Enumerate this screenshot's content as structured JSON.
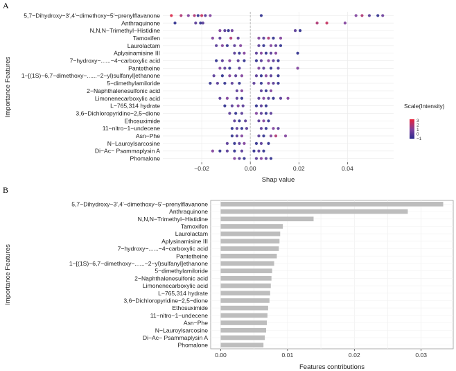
{
  "panels": {
    "a": {
      "letter": "A"
    },
    "b": {
      "letter": "B"
    }
  },
  "features": [
    "5,7−Dihydroxy−3',4'−dimethoxy−5'−prenylflavanone",
    "Anthraquinone",
    "N,N,N−Trimethyl−Histidine",
    "Tamoxifen",
    "Laurolactam",
    "Aplysinamisine III",
    "7−hydroxy−......−4−carboxylic acid",
    "Pantetheine",
    "1−[(1S)−6,7−dimethoxy−......−2−yl)sulfanyl]ethanone",
    "5−dimethylamiloride",
    "2−Naphthalenesulfonic acid",
    "Limonenecarboxylic acid",
    "L−765,314 hydrate",
    "3,6−Dichloropyridine−2,5−dione",
    "Ethosuximide",
    "11−nitro−1−undecene",
    "Asn−Phe",
    "N−Lauroylsarcosine",
    "Di−Ac− Psammaplysin A",
    "Phomalone"
  ],
  "chart_data": [
    {
      "type": "scatter",
      "panel": "A",
      "xlabel": "Shap value",
      "ylabel": "Importance Features",
      "xlim": [
        -0.036,
        0.059
      ],
      "xticks": [
        -0.02,
        0.0,
        0.02,
        0.04
      ],
      "xtick_labels": [
        "−0.02",
        "0.00",
        "0.02",
        "0.04"
      ],
      "zero_line": "dashed",
      "grid": true,
      "legend": {
        "title": "Scale(Intensity)",
        "placement": "right",
        "ticks": [
          "3",
          "2",
          "1",
          "0",
          "−1"
        ],
        "range": [
          -1,
          3.3
        ]
      },
      "colors": {
        "low": "#2b2b8c",
        "mid": "#7a3e9d",
        "high": "#e8243c"
      },
      "points": [
        [
          [
            -0.0325,
            3
          ],
          [
            -0.0285,
            2
          ],
          [
            -0.0255,
            1
          ],
          [
            -0.023,
            2
          ],
          [
            -0.0215,
            -1
          ],
          [
            -0.02,
            2.5
          ],
          [
            -0.0185,
            0
          ],
          [
            -0.0165,
            1
          ],
          [
            0.0045,
            -1
          ],
          [
            0.0435,
            1
          ],
          [
            0.046,
            2
          ],
          [
            0.049,
            0
          ],
          [
            0.0525,
            -1
          ],
          [
            0.0545,
            0.5
          ]
        ],
        [
          [
            -0.031,
            -1
          ],
          [
            -0.0225,
            0
          ],
          [
            -0.0205,
            -1
          ],
          [
            -0.0195,
            0
          ],
          [
            0.0275,
            2
          ],
          [
            0.0315,
            2.5
          ],
          [
            0.039,
            1
          ]
        ],
        [
          [
            -0.0125,
            1
          ],
          [
            -0.0105,
            0
          ],
          [
            -0.009,
            -1
          ],
          [
            -0.0075,
            0.5
          ],
          [
            0.0185,
            0
          ],
          [
            0.0205,
            -1
          ]
        ],
        [
          [
            -0.0155,
            1
          ],
          [
            -0.0125,
            0
          ],
          [
            -0.008,
            2
          ],
          [
            -0.005,
            0
          ],
          [
            0.0035,
            1
          ],
          [
            0.0055,
            0
          ],
          [
            0.0075,
            2
          ],
          [
            0.0095,
            -1
          ],
          [
            0.0125,
            1
          ]
        ],
        [
          [
            -0.014,
            0
          ],
          [
            -0.0115,
            1
          ],
          [
            -0.0095,
            -1
          ],
          [
            -0.0065,
            0
          ],
          [
            -0.004,
            1
          ],
          [
            0.0035,
            0
          ],
          [
            0.0055,
            -1
          ],
          [
            0.0085,
            1
          ],
          [
            0.0105,
            0
          ],
          [
            0.0125,
            -1
          ]
        ],
        [
          [
            -0.0065,
            0
          ],
          [
            -0.0045,
            -1
          ],
          [
            -0.0025,
            1
          ],
          [
            0.0025,
            0
          ],
          [
            0.0045,
            1
          ],
          [
            0.0065,
            -1
          ],
          [
            0.0085,
            0
          ],
          [
            0.0105,
            1
          ],
          [
            0.0195,
            -1
          ]
        ],
        [
          [
            -0.014,
            -1
          ],
          [
            -0.0115,
            0
          ],
          [
            -0.0085,
            1
          ],
          [
            -0.005,
            0
          ],
          [
            -0.0025,
            -1
          ],
          [
            0.0025,
            -1
          ],
          [
            0.0045,
            0
          ],
          [
            0.0075,
            1
          ],
          [
            0.0095,
            0
          ],
          [
            0.0115,
            -1
          ]
        ],
        [
          [
            -0.0125,
            1
          ],
          [
            -0.0105,
            0
          ],
          [
            -0.0085,
            -1
          ],
          [
            -0.0045,
            0
          ],
          [
            0.0035,
            1
          ],
          [
            0.0055,
            0
          ],
          [
            0.0085,
            -1
          ],
          [
            0.0115,
            0
          ],
          [
            0.0195,
            1
          ]
        ],
        [
          [
            -0.015,
            0
          ],
          [
            -0.0115,
            -1
          ],
          [
            -0.0085,
            1
          ],
          [
            -0.006,
            0
          ],
          [
            -0.0035,
            1
          ],
          [
            0.0025,
            0
          ],
          [
            0.0045,
            -1
          ],
          [
            0.0065,
            1
          ],
          [
            0.0085,
            0
          ],
          [
            0.0115,
            -1
          ]
        ],
        [
          [
            -0.0165,
            -1
          ],
          [
            -0.0135,
            0
          ],
          [
            -0.0105,
            -1
          ],
          [
            -0.0075,
            0
          ],
          [
            -0.0045,
            -1
          ],
          [
            0.0015,
            0
          ],
          [
            0.0045,
            -1
          ],
          [
            0.0075,
            1
          ],
          [
            0.0095,
            0
          ],
          [
            0.0115,
            -1
          ]
        ],
        [
          [
            -0.0055,
            0
          ],
          [
            -0.0035,
            1
          ],
          [
            0.0045,
            0
          ],
          [
            0.0065,
            -1
          ],
          [
            0.0085,
            1
          ]
        ],
        [
          [
            -0.0125,
            0
          ],
          [
            -0.0095,
            1
          ],
          [
            -0.0055,
            0
          ],
          [
            -0.0035,
            -1
          ],
          [
            0.0035,
            0
          ],
          [
            0.0055,
            1
          ],
          [
            0.0075,
            0
          ],
          [
            0.0095,
            -1
          ],
          [
            0.0125,
            0
          ],
          [
            0.0155,
            1
          ]
        ],
        [
          [
            -0.0105,
            -1
          ],
          [
            -0.0075,
            0
          ],
          [
            -0.005,
            1
          ],
          [
            -0.003,
            0
          ],
          [
            0.0025,
            -1
          ],
          [
            0.0045,
            0
          ],
          [
            0.0065,
            -1
          ]
        ],
        [
          [
            -0.0085,
            0
          ],
          [
            -0.006,
            -1
          ],
          [
            -0.0035,
            0
          ],
          [
            0.0025,
            1
          ],
          [
            0.0045,
            0
          ],
          [
            0.0065,
            -1
          ],
          [
            0.0085,
            0
          ]
        ],
        [
          [
            -0.0065,
            0
          ],
          [
            -0.0045,
            -1
          ],
          [
            -0.002,
            0
          ],
          [
            0.0035,
            0
          ],
          [
            0.0055,
            1
          ],
          [
            0.0075,
            -1
          ]
        ],
        [
          [
            -0.0075,
            -1
          ],
          [
            -0.0055,
            0
          ],
          [
            -0.0035,
            -1
          ],
          [
            -0.0015,
            0
          ],
          [
            0.0045,
            0
          ],
          [
            0.0065,
            -1
          ],
          [
            0.0095,
            1
          ],
          [
            0.0115,
            0
          ]
        ],
        [
          [
            -0.0075,
            -1
          ],
          [
            -0.0055,
            0
          ],
          [
            -0.0035,
            1
          ],
          [
            0.0035,
            0
          ],
          [
            0.0055,
            -1
          ],
          [
            0.0085,
            1
          ],
          [
            0.0105,
            2
          ],
          [
            0.0145,
            1
          ]
        ],
        [
          [
            -0.0095,
            0
          ],
          [
            -0.0065,
            -1
          ],
          [
            -0.0045,
            0
          ],
          [
            -0.0025,
            1
          ],
          [
            0.0025,
            -1
          ],
          [
            0.0045,
            0
          ],
          [
            0.0075,
            -1
          ]
        ],
        [
          [
            -0.0155,
            1
          ],
          [
            -0.0125,
            -1
          ],
          [
            -0.0095,
            0
          ],
          [
            -0.0065,
            -1
          ],
          [
            -0.0035,
            0
          ],
          [
            0.0015,
            -1
          ],
          [
            0.0035,
            0
          ],
          [
            0.0055,
            -1
          ]
        ],
        [
          [
            -0.0065,
            1
          ],
          [
            -0.0045,
            0
          ],
          [
            -0.0025,
            -1
          ],
          [
            0.0025,
            0
          ],
          [
            0.0045,
            1
          ],
          [
            0.0065,
            0
          ],
          [
            0.0085,
            -1
          ]
        ]
      ]
    },
    {
      "type": "bar",
      "orientation": "horizontal",
      "panel": "B",
      "xlabel": "Features contributions",
      "ylabel": "Importance Features",
      "xlim": [
        -0.0015,
        0.0348
      ],
      "xticks": [
        0.0,
        0.01,
        0.02,
        0.03
      ],
      "xtick_labels": [
        "0.00",
        "0.01",
        "0.02",
        "0.03"
      ],
      "grid": true,
      "bar_color": "#bdbdbd",
      "values": [
        0.0333,
        0.028,
        0.0139,
        0.0093,
        0.0089,
        0.0088,
        0.0087,
        0.0084,
        0.008,
        0.0077,
        0.0076,
        0.0075,
        0.0074,
        0.0073,
        0.0071,
        0.007,
        0.0069,
        0.0068,
        0.0066,
        0.0064
      ]
    }
  ]
}
